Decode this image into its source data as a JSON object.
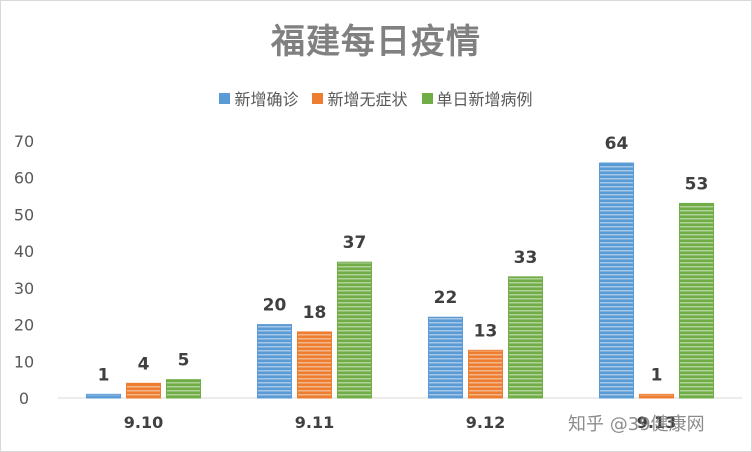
{
  "chart_data": {
    "type": "bar",
    "title": "福建每日疫情",
    "categories": [
      "9.10",
      "9.11",
      "9.12",
      "9.13"
    ],
    "series": [
      {
        "name": "新增确诊",
        "values": [
          1,
          20,
          22,
          64
        ],
        "color": "#5b9bd5"
      },
      {
        "name": "新增无症状",
        "values": [
          4,
          18,
          13,
          1
        ],
        "color": "#ed7d31"
      },
      {
        "name": "单日新增病例",
        "values": [
          5,
          37,
          33,
          53
        ],
        "color": "#70ad47"
      }
    ],
    "ylim": [
      0,
      70
    ],
    "yticks": [
      0,
      10,
      20,
      30,
      40,
      50,
      60,
      70
    ],
    "grid": false,
    "legend": "top"
  },
  "watermark": "知乎 @39健康网"
}
